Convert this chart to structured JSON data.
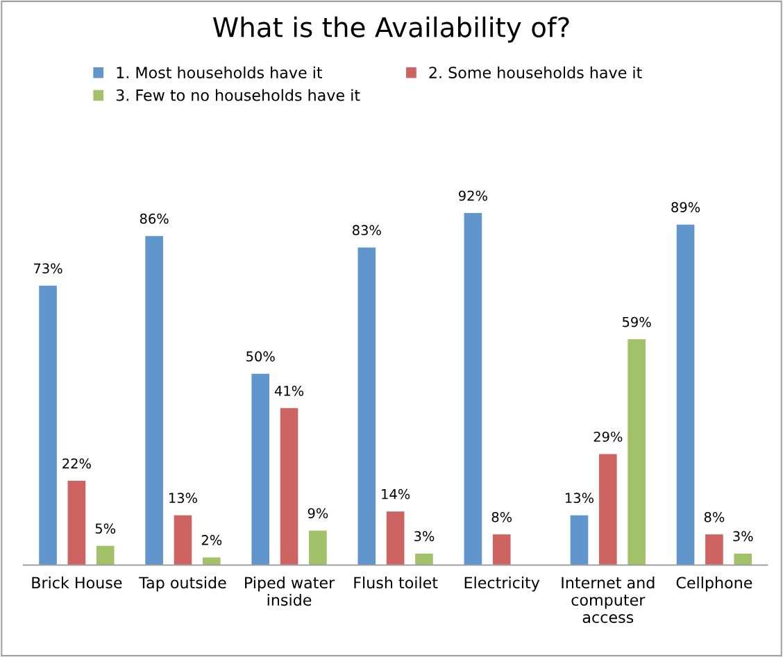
{
  "chart_data": {
    "type": "bar",
    "title": "What is the Availability of?",
    "categories": [
      "Brick House",
      "Tap outside",
      "Piped water\ninside",
      "Flush toilet",
      "Electricity",
      "Internet and\ncomputer\naccess",
      "Cellphone"
    ],
    "series": [
      {
        "name": "1. Most households have it",
        "color": "#6096cc",
        "values": [
          73,
          86,
          50,
          83,
          92,
          13,
          89
        ],
        "value_labels": [
          "73%",
          "86%",
          "50%",
          "83%",
          "92%",
          "13%",
          "89%"
        ]
      },
      {
        "name": "2. Some households have it",
        "color": "#cd6462",
        "values": [
          22,
          13,
          41,
          14,
          8,
          29,
          8
        ],
        "value_labels": [
          "22%",
          "13%",
          "41%",
          "14%",
          "8%",
          "29%",
          "8%"
        ]
      },
      {
        "name": "3. Few to no households have it",
        "color": "#a2c26a",
        "values": [
          5,
          2,
          9,
          3,
          null,
          59,
          3
        ],
        "value_labels": [
          "5%",
          "2%",
          "9%",
          "3%",
          null,
          "59%",
          "3%"
        ]
      }
    ],
    "legend": "top"
  }
}
